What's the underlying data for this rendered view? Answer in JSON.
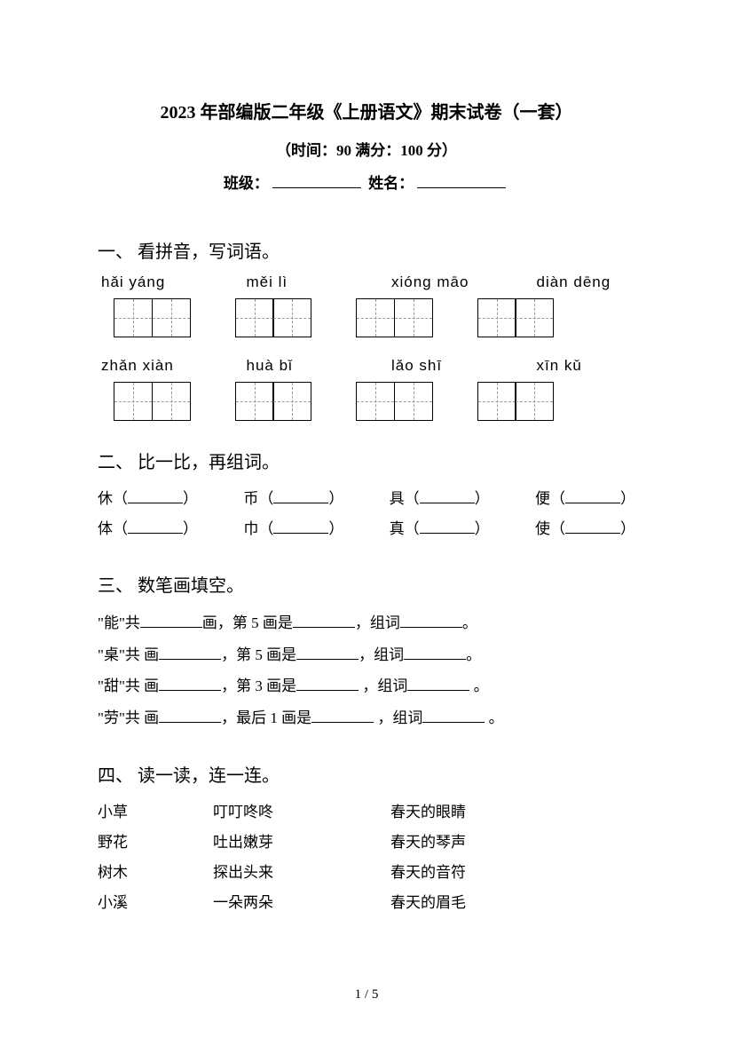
{
  "header": {
    "title": "2023 年部编版二年级《上册语文》期末试卷（一套）",
    "subtitle": "（时间：90   满分：100 分）",
    "class_label": "班级：",
    "name_label": "姓名："
  },
  "q1": {
    "heading": "一、 看拼音，写词语。",
    "row1": [
      "hǎi  yáng",
      "měi    lì",
      "xióng  māo",
      "diàn dēng"
    ],
    "row2": [
      "zhǎn  xiàn",
      "huà    bǐ",
      "lǎo   shī",
      "xīn    kǔ"
    ]
  },
  "q2": {
    "heading": "二、 比一比，再组词。",
    "pairs": [
      [
        "休",
        "币",
        "具",
        "便"
      ],
      [
        "体",
        "巾",
        "真",
        "使"
      ]
    ]
  },
  "q3": {
    "heading": "三、 数笔画填空。",
    "lines": [
      {
        "char": "能",
        "pre": "\"能\"共",
        "mid1": "画，第 5 画是",
        "mid2": "，组词",
        "end": "。"
      },
      {
        "char": "桌",
        "pre": "\"桌\"共  画",
        "mid1": "，第 5 画是",
        "mid2": "，组词",
        "end": "。"
      },
      {
        "char": "甜",
        "pre": "\"甜\"共  画",
        "mid1": "，第 3 画是",
        "mid2": "  ，组词",
        "end": "   。"
      },
      {
        "char": "劳",
        "pre": "\"劳\"共  画",
        "mid1": "，最后 1 画是",
        "mid2": "  ，组词",
        "end": "   。"
      }
    ]
  },
  "q4": {
    "heading": "四、 读一读，连一连。",
    "rows": [
      [
        "小草",
        "叮叮咚咚",
        "春天的眼睛"
      ],
      [
        "野花",
        "吐出嫩芽",
        "春天的琴声"
      ],
      [
        "树木",
        "探出头来",
        "春天的音符"
      ],
      [
        "小溪",
        "一朵两朵",
        "春天的眉毛"
      ]
    ]
  },
  "pagenum": "1  /  5"
}
